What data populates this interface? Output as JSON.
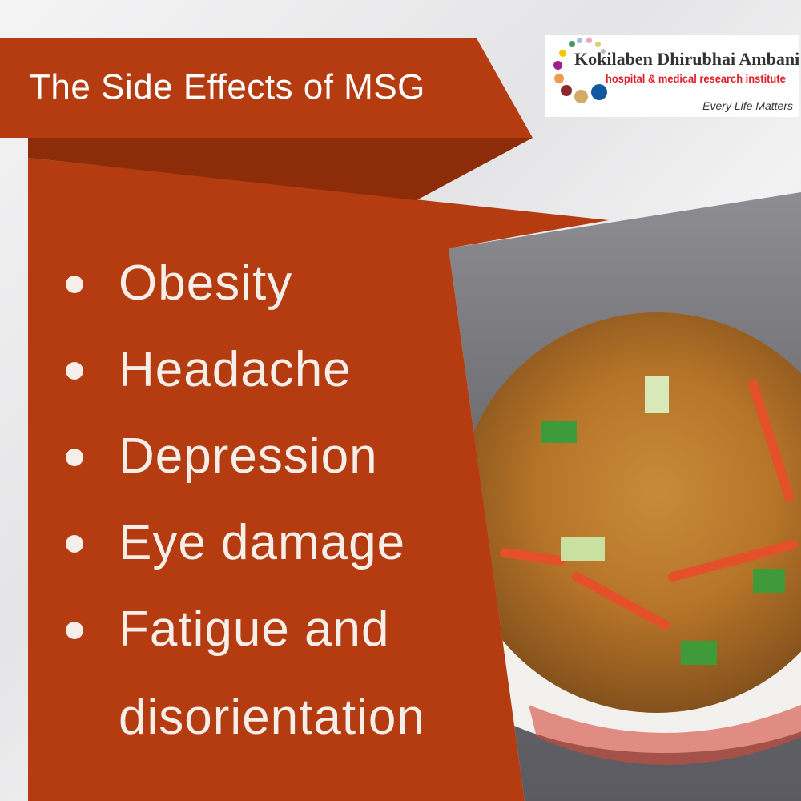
{
  "title": "The Side Effects of MSG",
  "logo": {
    "name": "Kokilaben Dhirubhai Ambani",
    "subtitle": "hospital & medical research institute",
    "tagline": "Every Life Matters"
  },
  "side_effects": [
    "Obesity",
    "Headache",
    "Depression",
    "Eye damage",
    "Fatigue and",
    "disorientation"
  ],
  "colors": {
    "banner": "#b53c10",
    "fold": "#8c2c08",
    "text": "#f6eee8"
  }
}
